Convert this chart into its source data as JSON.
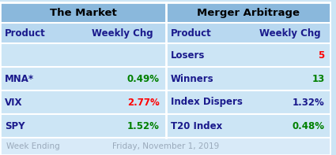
{
  "title_left": "The Market",
  "title_right": "Merger Arbitrage",
  "header_left": [
    "Product",
    "Weekly Chg"
  ],
  "header_right": [
    "Product",
    "Weekly Chg"
  ],
  "rows_left": [
    [
      "SPY",
      "1.52%",
      "green"
    ],
    [
      "VIX",
      "2.77%",
      "red"
    ],
    [
      "MNA*",
      "0.49%",
      "green"
    ],
    [
      "",
      "",
      "green"
    ]
  ],
  "rows_right": [
    [
      "T20 Index",
      "0.48%",
      "green"
    ],
    [
      "Index Dispers",
      "1.32%",
      "#1a1a8c"
    ],
    [
      "Winners",
      "13",
      "green"
    ],
    [
      "Losers",
      "5",
      "red"
    ]
  ],
  "footer_label": "Week Ending",
  "footer_date": "Friday, November 1, 2019",
  "bg_light": "#cce5f5",
  "bg_header": "#b8d8f0",
  "bg_title": "#8ab8dc",
  "bg_footer": "#d8eaf8",
  "label_color": "#1a1a8c",
  "footer_color": "#9aaabb",
  "white": "#ffffff",
  "mid": 0.502
}
